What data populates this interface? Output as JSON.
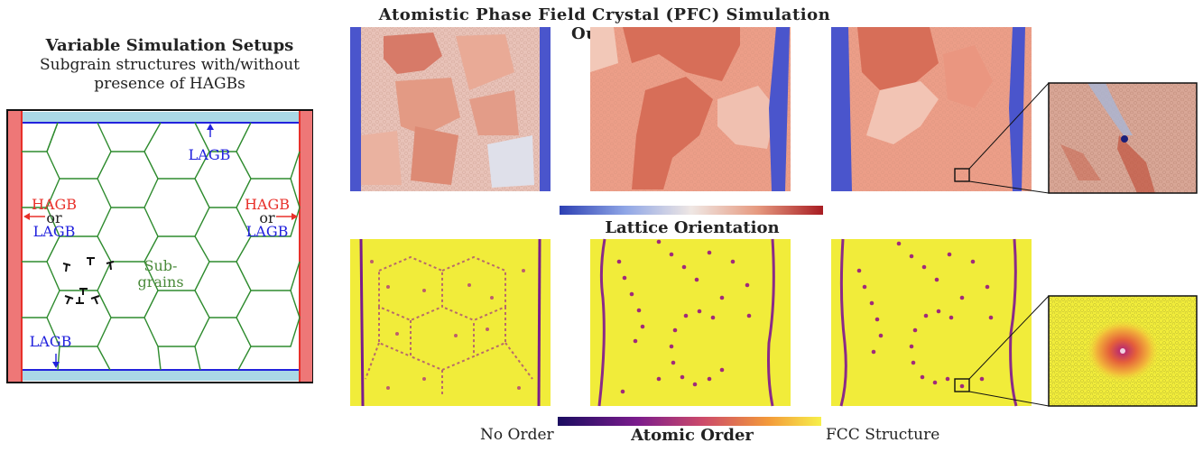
{
  "left_panel": {
    "title": "Variable Simulation Setups",
    "subtitle_line1": "Subgrain structures with/without",
    "subtitle_line2": "presence of HAGBs",
    "labels": {
      "lagb_top": "LAGB",
      "hagb_left": "HAGB",
      "or_left": "or",
      "lagb_left": "LAGB",
      "hagb_right": "HAGB",
      "or_right": "or",
      "lagb_right": "LAGB",
      "subgrains_1": "Sub-",
      "subgrains_2": "grains",
      "lagb_bottom": "LAGB"
    }
  },
  "top_title": "Atomistic Phase Field Crystal (PFC) Simulation Output",
  "lattice_label": "Lattice Orientation",
  "atomic_order": {
    "low_label": "No Order",
    "title": "Atomic Order",
    "high_label": "FCC Structure"
  },
  "colors": {
    "hagb_red": "#e8302a",
    "lagb_blue": "#2222dd",
    "grain_green": "#2e8b2e",
    "subgrain_text": "#4a8a3a",
    "boundary_bar": "#ee7777",
    "top_bar": "#aad8e6",
    "pfc_blue": "#4a55cc",
    "pfc_light": "#eca28c",
    "pfc_dark": "#d86a55",
    "order_bg": "#f1ec3a"
  }
}
